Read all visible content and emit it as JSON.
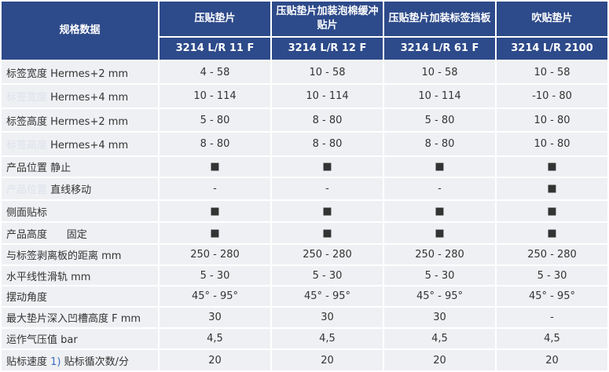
{
  "header": {
    "title": "规格数据",
    "columns": [
      "压贴垫片",
      "压贴垫片加装泡棉缓冲贴片",
      "压贴垫片加装标签挡板",
      "吹贴垫片"
    ],
    "models": [
      "3214 L/R 11 F",
      "3214 L/R 12 F",
      "3214 L/R 61 F",
      "3214 L/R 2100"
    ]
  },
  "rows": [
    {
      "label": "标签宽度 Hermes+2 mm",
      "cells": [
        "4 - 58",
        "10 - 58",
        "10 - 58",
        "10 - 58"
      ]
    },
    {
      "ghost": "标签宽度",
      "label": "Hermes+4 mm",
      "cells": [
        "10 - 114",
        "10 - 114",
        "10 - 114",
        "-10 - 80"
      ]
    },
    {
      "label": "标签高度 Hermes+2 mm",
      "cells": [
        "5 - 80",
        "8 - 80",
        "5 - 80",
        "10 - 80"
      ]
    },
    {
      "ghost": "标签高度",
      "label": "Hermes+4 mm",
      "cells": [
        "8 - 80",
        "8 - 80",
        "8 - 80",
        "10 - 80"
      ]
    },
    {
      "label": "产品位置 静止",
      "cells": [
        "■",
        "■",
        "■",
        "■"
      ]
    },
    {
      "ghost": "产品位置",
      "label": "直线移动",
      "cells": [
        "-",
        "-",
        "-",
        "■"
      ]
    },
    {
      "label": "侧面贴标",
      "cells": [
        "■",
        "■",
        "■",
        "■"
      ]
    },
    {
      "label": "产品高度      固定",
      "cells": [
        "■",
        "■",
        "■",
        "■"
      ]
    },
    {
      "label": "与标签剥离板的距离 mm",
      "cells": [
        "250 - 280",
        "250 - 280",
        "250 - 280",
        "250 - 280"
      ]
    },
    {
      "label": "水平线性滑轨 mm",
      "cells": [
        "5 - 30",
        "5 - 30",
        "5 - 30",
        "5 - 30"
      ]
    },
    {
      "label": "摆动角度",
      "cells": [
        "45° - 95°",
        "45° - 95°",
        "45° - 95°",
        "45° - 95°"
      ]
    },
    {
      "label": "最大垫片深入凹槽高度 F mm",
      "cells": [
        "30",
        "30",
        "30",
        "-"
      ]
    },
    {
      "label": "运作气压值 bar",
      "cells": [
        "4,5",
        "4,5",
        "4,5",
        "4,5"
      ]
    },
    {
      "label": "贴标速度",
      "note": "1)",
      "after": "贴标循次数/分",
      "cells": [
        "20",
        "20",
        "20",
        "20"
      ]
    }
  ]
}
